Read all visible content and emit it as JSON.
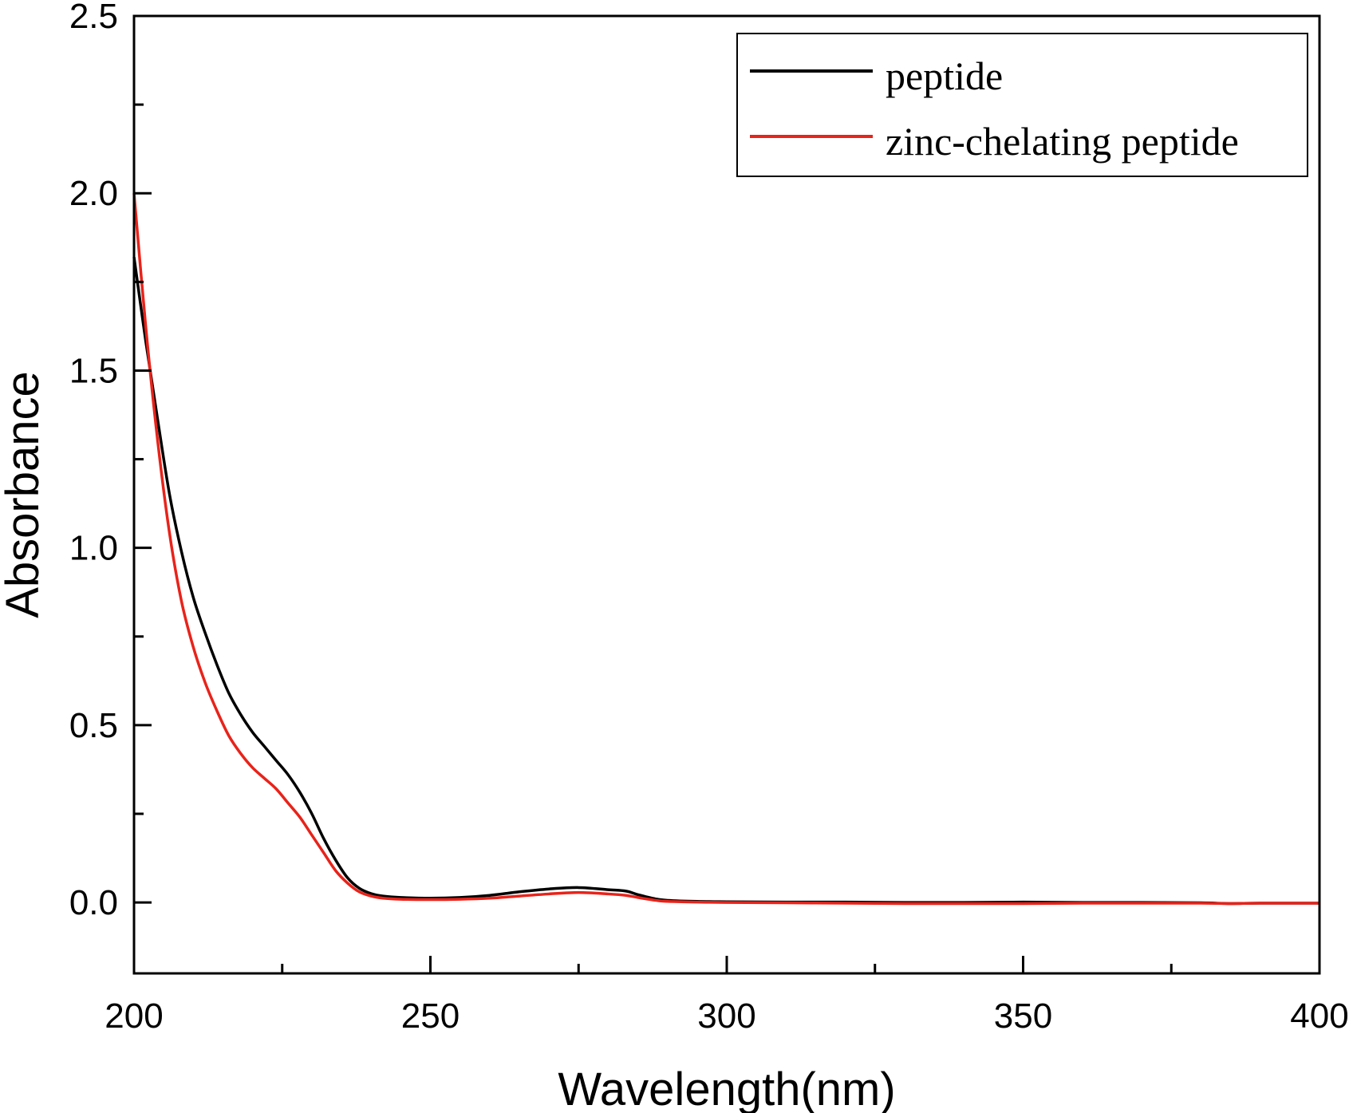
{
  "chart_data": {
    "type": "line",
    "xlabel": "Wavelength(nm)",
    "ylabel": "Absorbance",
    "xlim": [
      200,
      400
    ],
    "ylim": [
      -0.2,
      2.5
    ],
    "xticks": [
      200,
      250,
      300,
      350,
      400
    ],
    "yticks": [
      0.0,
      0.5,
      1.0,
      1.5,
      2.0,
      2.5
    ],
    "xtick_labels": [
      "200",
      "250",
      "300",
      "350",
      "400"
    ],
    "ytick_labels": [
      "0.0",
      "0.5",
      "1.0",
      "1.5",
      "2.0",
      "2.5"
    ],
    "grid": false,
    "legend_position": "top-right",
    "series": [
      {
        "name": "peptide",
        "color": "#000000",
        "x": [
          200,
          202,
          204,
          206,
          208,
          210,
          212,
          214,
          216,
          218,
          220,
          222,
          224,
          226,
          228,
          230,
          232,
          234,
          236,
          238,
          240,
          242,
          245,
          250,
          255,
          260,
          265,
          270,
          275,
          280,
          283,
          285,
          288,
          290,
          295,
          300,
          310,
          320,
          330,
          340,
          350,
          360,
          370,
          380,
          385,
          390,
          400
        ],
        "y": [
          1.82,
          1.58,
          1.36,
          1.15,
          0.99,
          0.86,
          0.76,
          0.67,
          0.59,
          0.53,
          0.48,
          0.44,
          0.4,
          0.36,
          0.31,
          0.25,
          0.18,
          0.12,
          0.07,
          0.04,
          0.025,
          0.018,
          0.014,
          0.012,
          0.014,
          0.02,
          0.03,
          0.038,
          0.042,
          0.036,
          0.032,
          0.022,
          0.01,
          0.006,
          0.003,
          0.002,
          0.001,
          0.001,
          0.0,
          0.0,
          0.001,
          0.0,
          0.0,
          -0.001,
          -0.003,
          -0.002,
          -0.002
        ]
      },
      {
        "name": "zinc-chelating peptide",
        "color": "#e8231a",
        "x": [
          200,
          202,
          204,
          206,
          208,
          210,
          212,
          214,
          216,
          218,
          220,
          222,
          224,
          226,
          228,
          230,
          232,
          234,
          236,
          238,
          240,
          242,
          245,
          250,
          255,
          260,
          265,
          270,
          275,
          280,
          283,
          285,
          288,
          290,
          295,
          300,
          310,
          320,
          330,
          340,
          350,
          360,
          370,
          380,
          385,
          390,
          400
        ],
        "y": [
          2.0,
          1.62,
          1.3,
          1.04,
          0.85,
          0.72,
          0.62,
          0.54,
          0.47,
          0.42,
          0.38,
          0.35,
          0.32,
          0.28,
          0.24,
          0.19,
          0.14,
          0.09,
          0.055,
          0.03,
          0.018,
          0.012,
          0.009,
          0.008,
          0.009,
          0.012,
          0.018,
          0.024,
          0.028,
          0.024,
          0.02,
          0.014,
          0.006,
          0.003,
          0.001,
          0.0,
          -0.001,
          -0.002,
          -0.003,
          -0.003,
          -0.003,
          -0.002,
          -0.002,
          -0.002,
          -0.003,
          -0.002,
          -0.002
        ]
      }
    ]
  }
}
